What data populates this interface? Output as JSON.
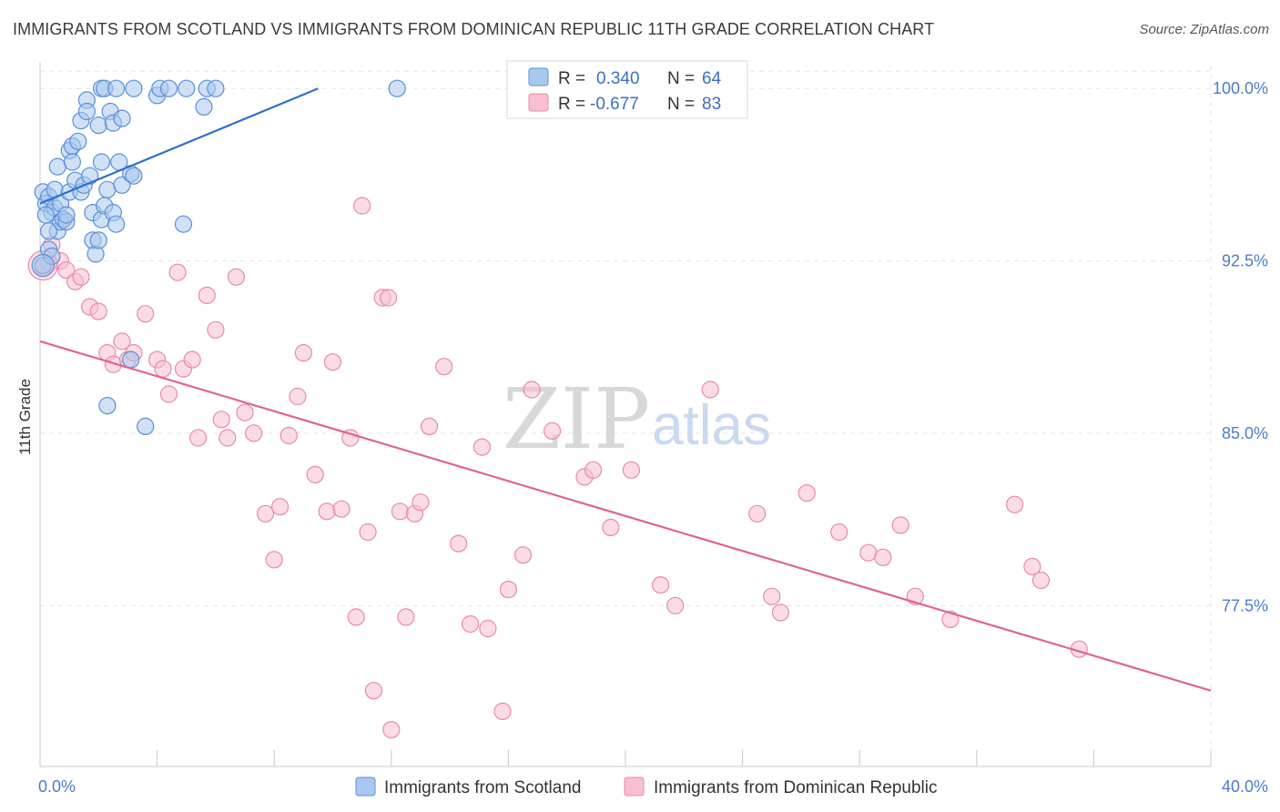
{
  "header": {
    "title": "IMMIGRANTS FROM SCOTLAND VS IMMIGRANTS FROM DOMINICAN REPUBLIC 11TH GRADE CORRELATION CHART",
    "source": "Source: ZipAtlas.com"
  },
  "legend": {
    "r_label": "R =",
    "n_label": "N =",
    "series1_r": "0.340",
    "series1_n": "64",
    "series2_r": "-0.677",
    "series2_n": "83"
  },
  "bottom_legend": {
    "series1": "Immigrants from Scotland",
    "series2": "Immigrants from Dominican Republic"
  },
  "watermark": {
    "zip": "ZIP",
    "atlas": "atlas"
  },
  "colors": {
    "series1_fill": "#a9c8f0",
    "series1_stroke": "#5b8fd6",
    "series1_line": "#2e6fce",
    "series2_fill": "#f7bfd0",
    "series2_stroke": "#e88aa8",
    "series2_line": "#e0648e",
    "grid": "#e3e3e3",
    "tick_label": "#4a7cc8"
  },
  "chart_data": {
    "type": "scatter",
    "title": "IMMIGRANTS FROM SCOTLAND VS IMMIGRANTS FROM DOMINICAN REPUBLIC 11TH GRADE CORRELATION CHART",
    "xlabel": "",
    "ylabel": "11th Grade",
    "xlim": [
      0,
      40
    ],
    "ylim": [
      70.5,
      101
    ],
    "x_tick_labels": [
      "0.0%",
      "40.0%"
    ],
    "y_ticks": [
      100.0,
      92.5,
      85.0,
      77.5
    ],
    "y_tick_labels": [
      "100.0%",
      "92.5%",
      "85.0%",
      "77.5%"
    ],
    "grid": true,
    "legend_position": "top-center",
    "series": [
      {
        "name": "Immigrants from Scotland",
        "r": 0.34,
        "n": 64,
        "trend": [
          [
            0.0,
            95.0
          ],
          [
            9.5,
            100.0
          ]
        ],
        "points": [
          [
            0.1,
            95.5
          ],
          [
            0.2,
            95.0
          ],
          [
            0.3,
            95.3
          ],
          [
            0.4,
            94.6
          ],
          [
            0.5,
            95.6
          ],
          [
            0.5,
            94.8
          ],
          [
            0.6,
            93.8
          ],
          [
            0.7,
            95.0
          ],
          [
            0.7,
            94.2
          ],
          [
            0.8,
            94.3
          ],
          [
            0.9,
            94.2
          ],
          [
            1.0,
            95.5
          ],
          [
            1.0,
            97.3
          ],
          [
            1.1,
            97.5
          ],
          [
            1.2,
            96.0
          ],
          [
            1.3,
            97.7
          ],
          [
            1.4,
            98.6
          ],
          [
            1.4,
            95.5
          ],
          [
            1.5,
            95.8
          ],
          [
            1.6,
            99.5
          ],
          [
            1.6,
            99.0
          ],
          [
            1.7,
            96.2
          ],
          [
            1.8,
            94.6
          ],
          [
            1.8,
            93.4
          ],
          [
            1.9,
            92.8
          ],
          [
            2.0,
            98.4
          ],
          [
            2.1,
            94.3
          ],
          [
            2.0,
            93.4
          ],
          [
            2.1,
            96.8
          ],
          [
            2.2,
            94.9
          ],
          [
            2.3,
            95.6
          ],
          [
            2.1,
            100.0
          ],
          [
            2.2,
            100.0
          ],
          [
            2.4,
            99.0
          ],
          [
            2.5,
            98.5
          ],
          [
            2.5,
            94.6
          ],
          [
            2.6,
            94.1
          ],
          [
            2.6,
            100.0
          ],
          [
            2.7,
            96.8
          ],
          [
            2.8,
            95.8
          ],
          [
            2.8,
            98.7
          ],
          [
            3.1,
            96.3
          ],
          [
            3.2,
            96.2
          ],
          [
            3.2,
            100.0
          ],
          [
            4.0,
            99.7
          ],
          [
            4.1,
            100.0
          ],
          [
            4.4,
            100.0
          ],
          [
            5.0,
            100.0
          ],
          [
            5.6,
            99.2
          ],
          [
            5.7,
            100.0
          ],
          [
            6.0,
            100.0
          ],
          [
            12.2,
            100.0
          ],
          [
            4.9,
            94.1
          ],
          [
            2.3,
            86.2
          ],
          [
            3.6,
            85.3
          ],
          [
            3.1,
            88.2
          ],
          [
            0.1,
            92.3
          ],
          [
            0.3,
            93.0
          ],
          [
            0.2,
            94.5
          ],
          [
            0.4,
            92.7
          ],
          [
            0.6,
            96.6
          ],
          [
            1.1,
            96.8
          ],
          [
            0.9,
            94.5
          ],
          [
            0.3,
            93.8
          ]
        ]
      },
      {
        "name": "Immigrants from Dominican Republic",
        "r": -0.677,
        "n": 83,
        "trend": [
          [
            0.0,
            89.0
          ],
          [
            40.0,
            73.8
          ]
        ],
        "points": [
          [
            0.1,
            92.2
          ],
          [
            0.3,
            92.4
          ],
          [
            0.4,
            93.2
          ],
          [
            0.7,
            92.5
          ],
          [
            0.9,
            92.1
          ],
          [
            1.2,
            91.6
          ],
          [
            1.4,
            91.8
          ],
          [
            1.7,
            90.5
          ],
          [
            2.0,
            90.3
          ],
          [
            2.3,
            88.5
          ],
          [
            2.5,
            88.0
          ],
          [
            2.8,
            89.0
          ],
          [
            3.0,
            88.2
          ],
          [
            3.2,
            88.5
          ],
          [
            3.6,
            90.2
          ],
          [
            4.0,
            88.2
          ],
          [
            4.2,
            87.8
          ],
          [
            4.4,
            86.7
          ],
          [
            4.7,
            92.0
          ],
          [
            4.9,
            87.8
          ],
          [
            5.2,
            88.2
          ],
          [
            5.4,
            84.8
          ],
          [
            5.7,
            91.0
          ],
          [
            6.0,
            89.5
          ],
          [
            6.2,
            85.6
          ],
          [
            6.4,
            84.8
          ],
          [
            6.7,
            91.8
          ],
          [
            7.0,
            85.9
          ],
          [
            7.3,
            85.0
          ],
          [
            7.7,
            81.5
          ],
          [
            8.0,
            79.5
          ],
          [
            8.2,
            81.8
          ],
          [
            8.5,
            84.9
          ],
          [
            8.8,
            86.6
          ],
          [
            9.0,
            88.5
          ],
          [
            9.4,
            83.2
          ],
          [
            9.8,
            81.6
          ],
          [
            10.0,
            88.1
          ],
          [
            10.3,
            81.7
          ],
          [
            10.6,
            84.8
          ],
          [
            10.8,
            77.0
          ],
          [
            11.0,
            94.9
          ],
          [
            11.2,
            80.7
          ],
          [
            11.4,
            73.8
          ],
          [
            11.7,
            90.9
          ],
          [
            11.9,
            90.9
          ],
          [
            12.0,
            72.1
          ],
          [
            12.3,
            81.6
          ],
          [
            12.5,
            77.0
          ],
          [
            12.8,
            81.5
          ],
          [
            13.0,
            82.0
          ],
          [
            13.3,
            85.3
          ],
          [
            13.8,
            87.9
          ],
          [
            14.3,
            80.2
          ],
          [
            14.7,
            76.7
          ],
          [
            15.1,
            84.4
          ],
          [
            15.3,
            76.5
          ],
          [
            15.8,
            72.9
          ],
          [
            16.0,
            78.2
          ],
          [
            16.5,
            79.7
          ],
          [
            16.8,
            86.9
          ],
          [
            17.5,
            85.1
          ],
          [
            18.6,
            83.1
          ],
          [
            18.9,
            83.4
          ],
          [
            19.5,
            80.9
          ],
          [
            20.2,
            83.4
          ],
          [
            21.2,
            78.4
          ],
          [
            21.7,
            77.5
          ],
          [
            22.9,
            86.9
          ],
          [
            24.5,
            81.5
          ],
          [
            25.0,
            77.9
          ],
          [
            25.3,
            77.2
          ],
          [
            26.2,
            82.4
          ],
          [
            27.3,
            80.7
          ],
          [
            28.3,
            79.8
          ],
          [
            28.8,
            79.6
          ],
          [
            29.4,
            81.0
          ],
          [
            29.9,
            77.9
          ],
          [
            31.1,
            76.9
          ],
          [
            33.3,
            81.9
          ],
          [
            33.9,
            79.2
          ],
          [
            34.2,
            78.6
          ],
          [
            35.5,
            75.6
          ]
        ]
      }
    ]
  }
}
